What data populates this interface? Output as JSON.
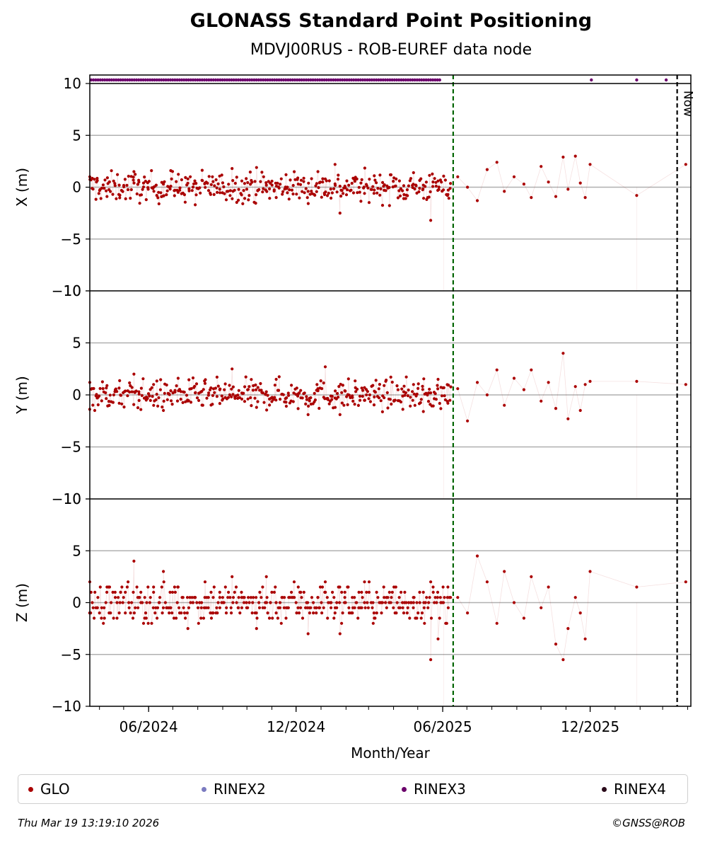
{
  "chart_data": {
    "type": "scatter",
    "title": "GLONASS Standard Point Positioning",
    "subtitle": "MDVJ00RUS - ROB-EUREF data node",
    "xlabel": "Month/Year",
    "x_tick_labels": [
      "06/2024",
      "12/2024",
      "06/2025",
      "12/2025"
    ],
    "x_range": [
      "2024-03-20",
      "2026-04-05"
    ],
    "panels": [
      {
        "name": "X",
        "ylabel": "X (m)",
        "ylim": [
          -10,
          10
        ],
        "y_ticks": [
          "−10",
          "−5",
          "0",
          "5",
          "10"
        ]
      },
      {
        "name": "Y",
        "ylabel": "Y (m)",
        "ylim": [
          -10,
          10
        ],
        "y_ticks": [
          "−10",
          "−5",
          "0",
          "5",
          "10"
        ]
      },
      {
        "name": "Z",
        "ylabel": "Z (m)",
        "ylim": [
          -10,
          10
        ],
        "y_ticks": [
          "−10",
          "−5",
          "0",
          "5",
          "10"
        ]
      }
    ],
    "grid": true,
    "markers": [
      {
        "date": "2025-06-14",
        "style": "dashed",
        "color": "#006400"
      },
      {
        "date": "2026-03-19",
        "style": "dashed",
        "color": "#000000",
        "label": "Now"
      }
    ],
    "series": [
      {
        "name": "GLO",
        "color": "#aa0000",
        "dense_range": [
          "2024-03-20",
          "2025-06-11"
        ],
        "dense_count": 380,
        "x": [
          [
            -0.0,
            1.0
          ],
          [
            0.3,
            0.85
          ],
          [
            0.7,
            -0.9
          ],
          [
            1.2,
            0.2
          ],
          [
            1.8,
            1.5
          ],
          [
            2.0,
            0.5
          ],
          [
            2.3,
            -1.2
          ],
          [
            2.6,
            0.0
          ],
          [
            3.0,
            0.3
          ],
          [
            3.3,
            1.6
          ],
          [
            3.6,
            -0.5
          ],
          [
            4.0,
            0.8
          ],
          [
            4.3,
            -1.7
          ],
          [
            4.7,
            0.4
          ],
          [
            5.0,
            1.0
          ],
          [
            5.3,
            -0.2
          ],
          [
            5.8,
            1.8
          ],
          [
            6.2,
            0.6
          ],
          [
            6.5,
            -0.8
          ],
          [
            6.8,
            1.9
          ],
          [
            7.2,
            0.2
          ],
          [
            7.6,
            -1.0
          ],
          [
            8.0,
            1.2
          ],
          [
            8.5,
            0.3
          ],
          [
            8.9,
            -0.4
          ],
          [
            9.3,
            1.5
          ],
          [
            9.6,
            0.8
          ],
          [
            10.0,
            2.2
          ],
          [
            10.2,
            -2.5
          ],
          [
            10.4,
            0.1
          ],
          [
            10.8,
            0.7
          ],
          [
            11.2,
            -0.6
          ],
          [
            11.6,
            1.1
          ],
          [
            12.0,
            -0.3
          ],
          [
            12.4,
            0.9
          ],
          [
            12.8,
            -1.1
          ],
          [
            13.2,
            1.4
          ],
          [
            13.6,
            0.2
          ],
          [
            13.9,
            -3.2
          ],
          [
            14.2,
            0.6
          ],
          [
            14.6,
            -0.7
          ],
          [
            15.0,
            1.0
          ],
          [
            15.4,
            0.0
          ],
          [
            15.8,
            -1.3
          ],
          [
            16.2,
            1.7
          ],
          [
            16.6,
            2.4
          ],
          [
            16.9,
            -0.4
          ],
          [
            17.3,
            1.0
          ],
          [
            17.7,
            0.3
          ],
          [
            18.0,
            -1.0
          ],
          [
            18.4,
            2.0
          ],
          [
            18.7,
            0.5
          ],
          [
            19.0,
            -0.9
          ],
          [
            19.3,
            2.9
          ],
          [
            19.5,
            -0.2
          ],
          [
            19.8,
            3.0
          ],
          [
            20.0,
            0.4
          ],
          [
            20.2,
            -1.0
          ],
          [
            20.4,
            2.2
          ],
          [
            22.3,
            -0.8
          ],
          [
            24.3,
            2.2
          ]
        ],
        "y": [
          [
            -0.0,
            1.2
          ],
          [
            0.3,
            -0.3
          ],
          [
            0.7,
            0.9
          ],
          [
            1.2,
            -0.8
          ],
          [
            1.8,
            2.0
          ],
          [
            2.0,
            0.3
          ],
          [
            2.3,
            -0.5
          ],
          [
            2.6,
            1.0
          ],
          [
            3.0,
            -1.5
          ],
          [
            3.3,
            0.4
          ],
          [
            3.6,
            1.6
          ],
          [
            4.0,
            -0.6
          ],
          [
            4.3,
            0.2
          ],
          [
            4.7,
            1.1
          ],
          [
            5.0,
            -0.9
          ],
          [
            5.3,
            0.5
          ],
          [
            5.8,
            2.5
          ],
          [
            6.2,
            -0.4
          ],
          [
            6.5,
            0.8
          ],
          [
            6.8,
            -1.2
          ],
          [
            7.2,
            0.3
          ],
          [
            7.6,
            1.5
          ],
          [
            8.0,
            -0.7
          ],
          [
            8.5,
            0.1
          ],
          [
            8.9,
            -1.9
          ],
          [
            9.3,
            0.6
          ],
          [
            9.6,
            2.7
          ],
          [
            10.0,
            -0.3
          ],
          [
            10.2,
            -1.9
          ],
          [
            10.4,
            0.4
          ],
          [
            10.8,
            -0.9
          ],
          [
            11.2,
            0.7
          ],
          [
            11.6,
            -0.2
          ],
          [
            12.0,
            0.9
          ],
          [
            12.4,
            -0.6
          ],
          [
            12.8,
            0.3
          ],
          [
            13.2,
            1.0
          ],
          [
            13.6,
            -1.6
          ],
          [
            13.9,
            0.2
          ],
          [
            14.2,
            1.5
          ],
          [
            14.6,
            -0.8
          ],
          [
            15.0,
            0.6
          ],
          [
            15.4,
            -2.5
          ],
          [
            15.8,
            1.2
          ],
          [
            16.2,
            0.0
          ],
          [
            16.6,
            2.4
          ],
          [
            16.9,
            -1.0
          ],
          [
            17.3,
            1.6
          ],
          [
            17.7,
            0.5
          ],
          [
            18.0,
            2.4
          ],
          [
            18.4,
            -0.6
          ],
          [
            18.7,
            1.2
          ],
          [
            19.0,
            -1.3
          ],
          [
            19.3,
            4.0
          ],
          [
            19.5,
            -2.3
          ],
          [
            19.8,
            0.8
          ],
          [
            20.0,
            -1.5
          ],
          [
            20.2,
            1.0
          ],
          [
            20.4,
            1.3
          ],
          [
            22.3,
            1.3
          ],
          [
            24.3,
            1.0
          ]
        ],
        "z": [
          [
            -0.0,
            2.0
          ],
          [
            0.3,
            -0.5
          ],
          [
            0.7,
            1.5
          ],
          [
            1.2,
            -1.0
          ],
          [
            1.8,
            4.0
          ],
          [
            2.0,
            0.5
          ],
          [
            2.3,
            -1.5
          ],
          [
            2.6,
            1.0
          ],
          [
            3.0,
            3.0
          ],
          [
            3.3,
            -0.5
          ],
          [
            3.6,
            1.5
          ],
          [
            4.0,
            -2.5
          ],
          [
            4.3,
            0.5
          ],
          [
            4.7,
            2.0
          ],
          [
            5.0,
            -1.0
          ],
          [
            5.3,
            1.0
          ],
          [
            5.8,
            2.5
          ],
          [
            6.2,
            -0.5
          ],
          [
            6.8,
            -2.5
          ],
          [
            7.2,
            2.5
          ],
          [
            7.6,
            0.0
          ],
          [
            8.0,
            -1.5
          ],
          [
            8.5,
            1.5
          ],
          [
            8.9,
            -3.0
          ],
          [
            9.3,
            0.5
          ],
          [
            9.6,
            2.0
          ],
          [
            10.0,
            -1.0
          ],
          [
            10.2,
            -3.0
          ],
          [
            10.4,
            1.0
          ],
          [
            10.8,
            -0.5
          ],
          [
            11.2,
            2.0
          ],
          [
            11.6,
            -1.5
          ],
          [
            12.0,
            0.5
          ],
          [
            12.4,
            1.5
          ],
          [
            12.8,
            -1.0
          ],
          [
            13.2,
            0.0
          ],
          [
            13.6,
            1.0
          ],
          [
            13.9,
            -5.5
          ],
          [
            14.2,
            -3.5
          ],
          [
            14.6,
            1.5
          ],
          [
            15.0,
            0.5
          ],
          [
            15.4,
            -1.0
          ],
          [
            15.8,
            4.5
          ],
          [
            16.2,
            2.0
          ],
          [
            16.6,
            -2.0
          ],
          [
            16.9,
            3.0
          ],
          [
            17.3,
            0.0
          ],
          [
            17.7,
            -1.5
          ],
          [
            18.0,
            2.5
          ],
          [
            18.4,
            -0.5
          ],
          [
            18.7,
            1.5
          ],
          [
            19.0,
            -4.0
          ],
          [
            19.3,
            -5.5
          ],
          [
            19.5,
            -2.5
          ],
          [
            19.8,
            0.5
          ],
          [
            20.0,
            -1.0
          ],
          [
            20.2,
            -3.5
          ],
          [
            20.4,
            3.0
          ],
          [
            22.3,
            1.5
          ],
          [
            24.3,
            2.0
          ]
        ]
      },
      {
        "name": "RINEX2",
        "color": "#7b7bc0"
      },
      {
        "name": "RINEX3",
        "color": "#6b006b",
        "markers_top_row": true
      },
      {
        "name": "RINEX4",
        "color": "#2a0a1a"
      }
    ]
  },
  "legend": [
    {
      "label": "GLO",
      "color": "#aa0000"
    },
    {
      "label": "RINEX2",
      "color": "#7b7bc0"
    },
    {
      "label": "RINEX3",
      "color": "#6b006b"
    },
    {
      "label": "RINEX4",
      "color": "#2a0a1a"
    }
  ],
  "footer": {
    "timestamp": "Thu Mar 19 13:19:10 2026",
    "copyright": "©GNSS@ROB"
  }
}
